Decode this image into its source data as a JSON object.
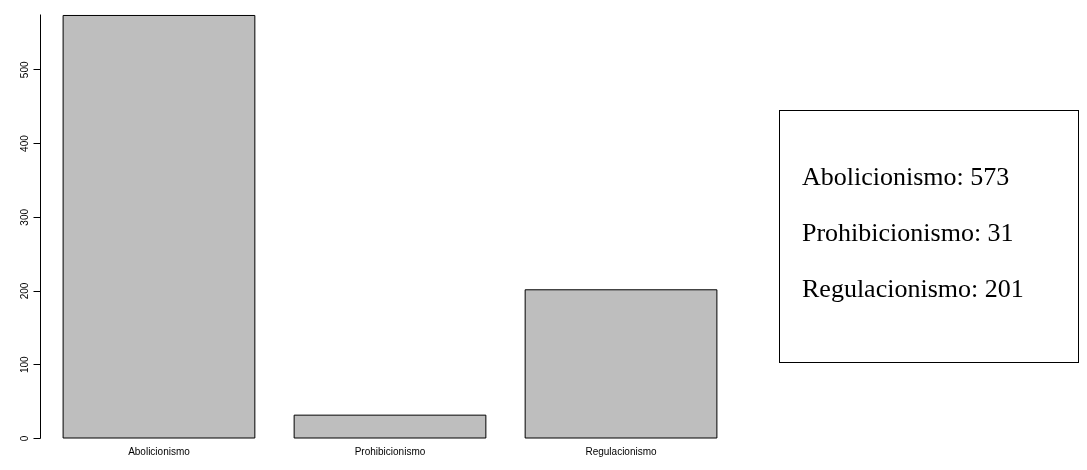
{
  "chart_data": {
    "type": "bar",
    "categories": [
      "Abolicionismo",
      "Prohibicionismo",
      "Regulacionismo"
    ],
    "values": [
      573,
      31,
      201
    ],
    "color": "#bebebe",
    "ylim": [
      0,
      575
    ],
    "yticks": [
      0,
      100,
      200,
      300,
      400,
      500
    ],
    "grid": false,
    "annotations": [
      "Abolicionismo: 573",
      "Prohibicionismo: 31",
      "Regulacionismo: 201"
    ]
  }
}
